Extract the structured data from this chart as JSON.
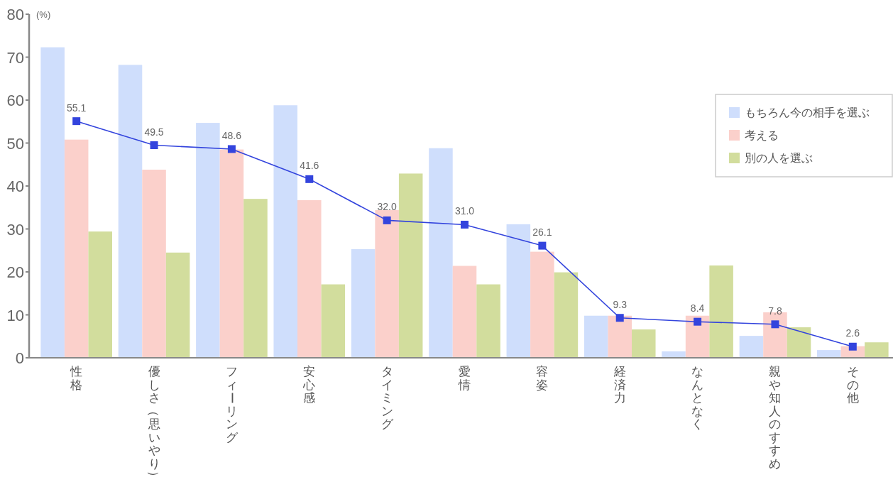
{
  "chart_data": {
    "type": "bar",
    "ylabel": "(%)",
    "categories": [
      "性格",
      "優しさ（思いやり）",
      "フィーリング",
      "安心感",
      "タイミング",
      "愛情",
      "容姿",
      "経済力",
      "なんとなく",
      "親や知人のすすめ",
      "その他"
    ],
    "series": [
      {
        "name": "もちろん今の相手を選ぶ",
        "color": "#cfdefc",
        "values": [
          72.3,
          68.2,
          54.7,
          58.8,
          25.3,
          48.8,
          31.1,
          9.8,
          1.5,
          5.1,
          1.8
        ]
      },
      {
        "name": "考える",
        "color": "#fbd0cb",
        "values": [
          50.8,
          43.8,
          48.5,
          36.7,
          34.4,
          21.4,
          24.7,
          9.8,
          9.8,
          10.6,
          2.7
        ]
      },
      {
        "name": "別の人を選ぶ",
        "color": "#d2dd9d",
        "values": [
          29.4,
          24.5,
          37.0,
          17.1,
          42.9,
          17.1,
          19.9,
          6.6,
          21.5,
          7.1,
          3.6
        ]
      },
      {
        "type": "line",
        "color": "#3344dd",
        "marker": "square",
        "values": [
          55.1,
          49.5,
          48.6,
          41.6,
          32.0,
          31.0,
          26.1,
          9.3,
          8.4,
          7.8,
          2.6
        ],
        "value_labels": [
          "55.1",
          "49.5",
          "48.6",
          "41.6",
          "32.0",
          "31.0",
          "26.1",
          "9.3",
          "8.4",
          "7.8",
          "2.6"
        ]
      }
    ],
    "ylim": [
      0,
      80
    ],
    "yticks": [
      0,
      10,
      20,
      30,
      40,
      50,
      60,
      70,
      80
    ],
    "legend": "top right"
  }
}
